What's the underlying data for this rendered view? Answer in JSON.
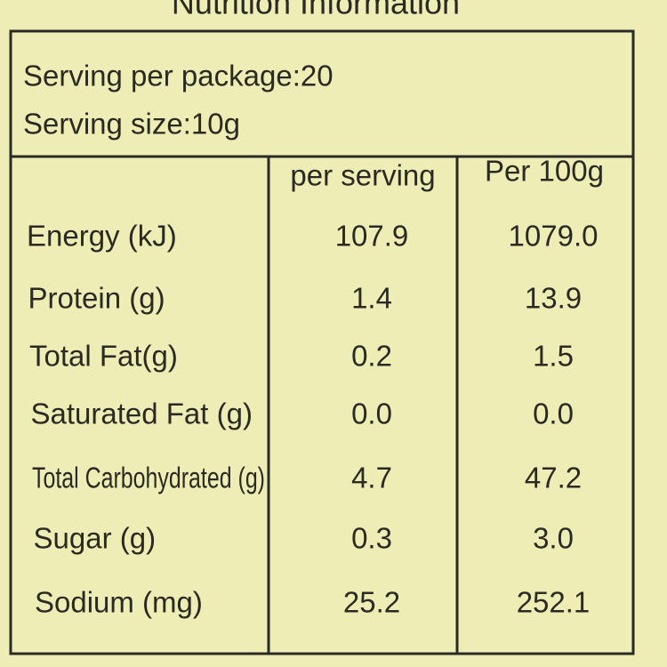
{
  "title": "Nutrition Information",
  "serving": [
    "Serving per package:20",
    "Serving size:10g"
  ],
  "table": {
    "header": [
      "per serving",
      "Per 100g"
    ],
    "rows": [
      {
        "label": "Energy (kJ)",
        "per_serving": "107.9",
        "per_100g": "1079.0"
      },
      {
        "label": "Protein (g)",
        "per_serving": "1.4",
        "per_100g": "13.9"
      },
      {
        "label": "Total Fat(g)",
        "per_serving": "0.2",
        "per_100g": "1.5"
      },
      {
        "label": "Saturated Fat (g)",
        "per_serving": "0.0",
        "per_100g": "0.0"
      },
      {
        "label": "Total Carbohydrated (g)",
        "per_serving": "4.7",
        "per_100g": "47.2"
      },
      {
        "label": "Sugar (g)",
        "per_serving": "0.3",
        "per_100g": "3.0"
      },
      {
        "label": "Sodium (mg)",
        "per_serving": "25.2",
        "per_100g": "252.1"
      }
    ]
  }
}
